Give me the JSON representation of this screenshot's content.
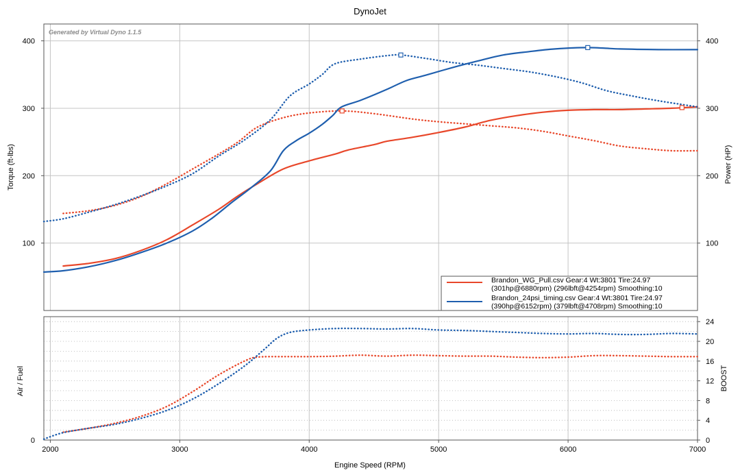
{
  "chart_data": {
    "type": "line",
    "title": "DynoJet",
    "note": "Generated by Virtual Dyno 1.1.5",
    "xlabel": "Engine Speed (RPM)",
    "xlim": [
      1950,
      7000
    ],
    "x_ticks": [
      2000,
      3000,
      4000,
      5000,
      6000,
      7000
    ],
    "colors": {
      "wg_pull": "#e8472a",
      "timing": "#1f5fae"
    },
    "upper": {
      "ylabel_left": "Torque (ft-lbs)",
      "ylabel_right": "Power (HP)",
      "ylim": [
        0,
        425
      ],
      "y_ticks": [
        100,
        200,
        300,
        400
      ],
      "grid": true,
      "series": [
        {
          "name": "Brandon_WG_Pull.csv",
          "metric": "hp",
          "style": "solid",
          "color_key": "wg_pull",
          "x": [
            2100,
            2300,
            2500,
            2700,
            2900,
            3100,
            3300,
            3450,
            3600,
            3800,
            4000,
            4200,
            4300,
            4500,
            4600,
            4800,
            5000,
            5200,
            5400,
            5600,
            5800,
            6000,
            6200,
            6400,
            6600,
            6800,
            6900,
            7000
          ],
          "y": [
            66,
            70,
            77,
            89,
            105,
            127,
            150,
            170,
            188,
            210,
            222,
            232,
            238,
            246,
            251,
            257,
            264,
            272,
            282,
            289,
            294,
            297,
            298,
            298,
            299,
            300,
            301,
            302
          ]
        },
        {
          "name": "Brandon_WG_Pull.csv",
          "metric": "torque",
          "style": "dotted",
          "color_key": "wg_pull",
          "x": [
            2100,
            2300,
            2500,
            2700,
            2900,
            3100,
            3300,
            3450,
            3600,
            3800,
            4000,
            4254,
            4500,
            4800,
            5000,
            5200,
            5400,
            5600,
            5800,
            6000,
            6200,
            6400,
            6600,
            6800,
            7000
          ],
          "y": [
            144,
            148,
            156,
            169,
            188,
            210,
            232,
            250,
            272,
            286,
            293,
            296,
            292,
            284,
            280,
            277,
            274,
            271,
            266,
            259,
            252,
            244,
            240,
            237,
            237
          ]
        },
        {
          "name": "Brandon_24psi_timing.csv",
          "metric": "hp",
          "style": "solid",
          "color_key": "timing",
          "x": [
            1950,
            2100,
            2300,
            2500,
            2700,
            2900,
            3100,
            3250,
            3400,
            3550,
            3700,
            3800,
            3900,
            4000,
            4100,
            4180,
            4250,
            4400,
            4600,
            4750,
            4900,
            5100,
            5300,
            5500,
            5700,
            5900,
            6152,
            6400,
            6700,
            7000
          ],
          "y": [
            57,
            59,
            65,
            74,
            86,
            100,
            118,
            137,
            160,
            182,
            207,
            237,
            252,
            263,
            276,
            289,
            302,
            312,
            328,
            341,
            349,
            360,
            370,
            379,
            384,
            388,
            390,
            388,
            387,
            387
          ]
        },
        {
          "name": "Brandon_24psi_timing.csv",
          "metric": "torque",
          "style": "dotted",
          "color_key": "timing",
          "x": [
            1950,
            2100,
            2300,
            2500,
            2700,
            2900,
            3100,
            3300,
            3500,
            3700,
            3850,
            4000,
            4100,
            4200,
            4400,
            4600,
            4708,
            4900,
            5100,
            5300,
            5500,
            5700,
            5900,
            6100,
            6300,
            6500,
            6700,
            6900,
            7000
          ],
          "y": [
            132,
            136,
            146,
            157,
            170,
            185,
            203,
            229,
            253,
            283,
            318,
            336,
            350,
            366,
            373,
            378,
            379,
            374,
            368,
            364,
            359,
            354,
            347,
            338,
            326,
            318,
            311,
            305,
            302
          ]
        }
      ],
      "markers": [
        {
          "series": "Brandon_WG_Pull.csv",
          "x": 4254,
          "y": 296,
          "color_key": "wg_pull"
        },
        {
          "series": "Brandon_WG_Pull.csv",
          "x": 6880,
          "y": 301,
          "color_key": "wg_pull"
        },
        {
          "series": "Brandon_24psi_timing.csv",
          "x": 4708,
          "y": 379,
          "color_key": "timing"
        },
        {
          "series": "Brandon_24psi_timing.csv",
          "x": 6152,
          "y": 390,
          "color_key": "timing"
        }
      ]
    },
    "lower": {
      "ylabel_left": "Air / Fuel",
      "ylabel_right": "BOOST",
      "left_ticks": [
        0
      ],
      "ylim_right": [
        0,
        25
      ],
      "right_ticks": [
        0,
        4,
        8,
        12,
        16,
        20,
        24
      ],
      "series": [
        {
          "name": "Brandon_WG_Pull.csv",
          "metric": "boost",
          "style": "dotted",
          "color_key": "wg_pull",
          "x": [
            2100,
            2300,
            2500,
            2700,
            2900,
            3100,
            3300,
            3500,
            3600,
            3800,
            4000,
            4200,
            4400,
            4600,
            4800,
            5000,
            5200,
            5400,
            5600,
            5800,
            6000,
            6200,
            6400,
            6600,
            6800,
            7000
          ],
          "y": [
            1.6,
            2.4,
            3.4,
            4.8,
            6.8,
            9.8,
            13.2,
            16,
            16.8,
            16.9,
            16.9,
            17,
            17.2,
            17,
            17.2,
            17.1,
            17,
            17,
            16.8,
            16.7,
            16.8,
            17.1,
            17.1,
            17,
            16.9,
            16.9
          ]
        },
        {
          "name": "Brandon_24psi_timing.csv",
          "metric": "boost",
          "style": "dotted",
          "color_key": "timing",
          "x": [
            1950,
            2100,
            2300,
            2500,
            2700,
            2900,
            3100,
            3300,
            3500,
            3650,
            3750,
            3850,
            4000,
            4200,
            4400,
            4600,
            4800,
            5000,
            5200,
            5400,
            5600,
            5800,
            6000,
            6200,
            6400,
            6600,
            6800,
            7000
          ],
          "y": [
            0.2,
            1.5,
            2.4,
            3.2,
            4.4,
            6,
            8.3,
            11.4,
            15,
            18.3,
            20.6,
            21.8,
            22.3,
            22.6,
            22.6,
            22.5,
            22.6,
            22.3,
            22.2,
            22,
            21.8,
            21.6,
            21.5,
            21.6,
            21.4,
            21.4,
            21.6,
            21.5
          ]
        }
      ]
    },
    "legend": {
      "placement": "bottom-right",
      "entries": [
        {
          "color_key": "wg_pull",
          "line1": "Brandon_WG_Pull.csv Gear:4 Wt:3801 Tire:24.97",
          "line2": "(301hp@6880rpm) (296lbft@4254rpm) Smoothing:10"
        },
        {
          "color_key": "timing",
          "line1": "Brandon_24psi_timing.csv Gear:4 Wt:3801 Tire:24.97",
          "line2": "(390hp@6152rpm) (379lbft@4708rpm) Smoothing:10"
        }
      ]
    }
  }
}
